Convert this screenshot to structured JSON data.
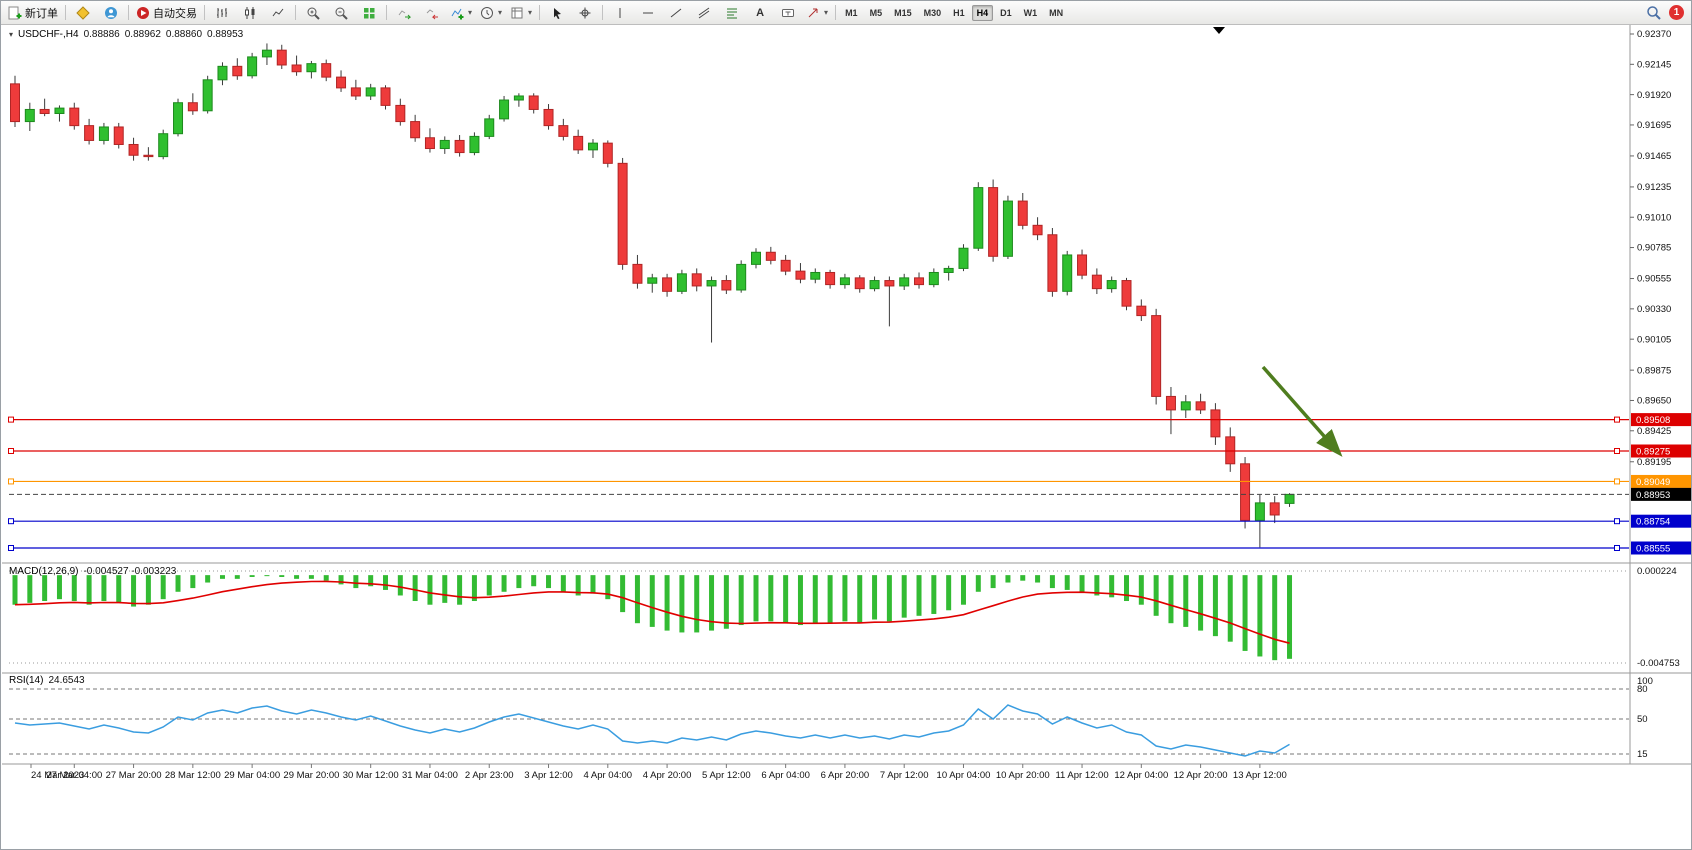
{
  "toolbar": {
    "new_order": "新订单",
    "auto_trading": "自动交易",
    "timeframe_labels": [
      "M1",
      "M5",
      "M15",
      "M30",
      "H1",
      "H4",
      "D1",
      "W1",
      "MN"
    ],
    "active_timeframe": "H4",
    "notification_badge": "1"
  },
  "chart": {
    "header": {
      "symbol": "USDCHF-,H4",
      "open": "0.88886",
      "high": "0.88962",
      "low": "0.88860",
      "close": "0.88953"
    },
    "price_ticks": [
      "0.92370",
      "0.92145",
      "0.91920",
      "0.91695",
      "0.91465",
      "0.91235",
      "0.91010",
      "0.90785",
      "0.90555",
      "0.90330",
      "0.90105",
      "0.89875",
      "0.89650",
      "0.89425",
      "0.89195"
    ],
    "levels": [
      {
        "value": 0.89508,
        "label": "0.89508",
        "color": "#dd0000"
      },
      {
        "value": 0.89275,
        "label": "0.89275",
        "color": "#dd0000"
      },
      {
        "value": 0.89049,
        "label": "0.89049",
        "color": "#ff9500"
      },
      {
        "value": 0.88754,
        "label": "0.88754",
        "color": "#0000cc"
      },
      {
        "value": 0.88555,
        "label": "0.88555",
        "color": "#0000cc"
      }
    ],
    "current_price": {
      "value": 0.88953,
      "label": "0.88953",
      "badge_color": "#000000"
    },
    "arrow_color": "#4f7d1f",
    "style": {
      "bull_color": "#2fbf2f",
      "bull_edge": "#1d8a1d",
      "bear_color": "#ee3b3b",
      "bear_edge": "#b02525",
      "wick_color": "#3a3a3a",
      "macd_hist_color": "#33bb33",
      "macd_signal_color": "#e00000",
      "rsi_line_color": "#3a9de0"
    }
  },
  "macd": {
    "label": "MACD(12,26,9)",
    "values_text": "-0.004527 -0.003223",
    "axis_max": "0.000224",
    "axis_min": "-0.004753"
  },
  "rsi": {
    "label": "RSI(14)",
    "value_text": "24.6543",
    "axis_levels": [
      "100",
      "80",
      "50",
      "15"
    ]
  },
  "chart_data": {
    "type": "candlestick",
    "title": "USDCHF-,H4",
    "symbol": "USDCHF",
    "timeframe": "H4",
    "x_axis_labels": [
      "24 Mar 2023",
      "27 Mar 04:00",
      "27 Mar 20:00",
      "28 Mar 12:00",
      "29 Mar 04:00",
      "29 Mar 20:00",
      "30 Mar 12:00",
      "31 Mar 04:00",
      "2 Apr 23:00",
      "3 Apr 12:00",
      "4 Apr 04:00",
      "4 Apr 20:00",
      "5 Apr 12:00",
      "6 Apr 04:00",
      "6 Apr 20:00",
      "7 Apr 12:00",
      "10 Apr 04:00",
      "10 Apr 20:00",
      "11 Apr 12:00",
      "12 Apr 04:00",
      "12 Apr 20:00",
      "13 Apr 12:00"
    ],
    "price_axis_range": [
      0.88555,
      0.9237
    ],
    "current_price": 0.88953,
    "horizontal_levels": [
      {
        "price": 0.89508,
        "color": "red"
      },
      {
        "price": 0.89275,
        "color": "red"
      },
      {
        "price": 0.89049,
        "color": "orange"
      },
      {
        "price": 0.88754,
        "color": "blue"
      },
      {
        "price": 0.88555,
        "color": "blue"
      }
    ],
    "candles_ohlc": [
      [
        0.92,
        0.9206,
        0.9168,
        0.9172
      ],
      [
        0.9172,
        0.9186,
        0.9165,
        0.9181
      ],
      [
        0.9181,
        0.9189,
        0.9176,
        0.9178
      ],
      [
        0.9178,
        0.9184,
        0.9172,
        0.9182
      ],
      [
        0.9182,
        0.9186,
        0.9166,
        0.9169
      ],
      [
        0.9169,
        0.9174,
        0.9155,
        0.9158
      ],
      [
        0.9158,
        0.9171,
        0.9155,
        0.9168
      ],
      [
        0.9168,
        0.9171,
        0.9152,
        0.9155
      ],
      [
        0.9155,
        0.916,
        0.9143,
        0.9147
      ],
      [
        0.9147,
        0.9153,
        0.9143,
        0.9146
      ],
      [
        0.9146,
        0.9166,
        0.9144,
        0.9163
      ],
      [
        0.9163,
        0.9189,
        0.9161,
        0.9186
      ],
      [
        0.9186,
        0.9193,
        0.9177,
        0.918
      ],
      [
        0.918,
        0.9206,
        0.9178,
        0.9203
      ],
      [
        0.9203,
        0.9216,
        0.9199,
        0.9213
      ],
      [
        0.9213,
        0.9219,
        0.9203,
        0.9206
      ],
      [
        0.9206,
        0.9223,
        0.9204,
        0.922
      ],
      [
        0.922,
        0.923,
        0.9214,
        0.9225
      ],
      [
        0.9225,
        0.9229,
        0.9211,
        0.9214
      ],
      [
        0.9214,
        0.9221,
        0.9206,
        0.9209
      ],
      [
        0.9209,
        0.9217,
        0.9204,
        0.9215
      ],
      [
        0.9215,
        0.9218,
        0.9202,
        0.9205
      ],
      [
        0.9205,
        0.921,
        0.9194,
        0.9197
      ],
      [
        0.9197,
        0.9203,
        0.9188,
        0.9191
      ],
      [
        0.9191,
        0.92,
        0.9188,
        0.9197
      ],
      [
        0.9197,
        0.9199,
        0.9181,
        0.9184
      ],
      [
        0.9184,
        0.9189,
        0.9169,
        0.9172
      ],
      [
        0.9172,
        0.9177,
        0.9157,
        0.916
      ],
      [
        0.916,
        0.9167,
        0.9149,
        0.9152
      ],
      [
        0.9152,
        0.9161,
        0.9148,
        0.9158
      ],
      [
        0.9158,
        0.9162,
        0.9146,
        0.9149
      ],
      [
        0.9149,
        0.9164,
        0.9147,
        0.9161
      ],
      [
        0.9161,
        0.9177,
        0.9159,
        0.9174
      ],
      [
        0.9174,
        0.9191,
        0.9172,
        0.9188
      ],
      [
        0.9188,
        0.9193,
        0.9183,
        0.9191
      ],
      [
        0.9191,
        0.9193,
        0.9178,
        0.9181
      ],
      [
        0.9181,
        0.9185,
        0.9166,
        0.9169
      ],
      [
        0.9169,
        0.9174,
        0.9158,
        0.9161
      ],
      [
        0.9161,
        0.9166,
        0.9148,
        0.9151
      ],
      [
        0.9151,
        0.9159,
        0.9145,
        0.9156
      ],
      [
        0.9156,
        0.9158,
        0.9138,
        0.9141
      ],
      [
        0.9141,
        0.9145,
        0.9062,
        0.9066
      ],
      [
        0.9066,
        0.9073,
        0.9048,
        0.9052
      ],
      [
        0.9052,
        0.9059,
        0.9045,
        0.9056
      ],
      [
        0.9056,
        0.9059,
        0.9042,
        0.9046
      ],
      [
        0.9046,
        0.9062,
        0.9044,
        0.9059
      ],
      [
        0.9059,
        0.9063,
        0.9046,
        0.905
      ],
      [
        0.905,
        0.9057,
        0.9008,
        0.9054
      ],
      [
        0.9054,
        0.9058,
        0.9044,
        0.9047
      ],
      [
        0.9047,
        0.9069,
        0.9045,
        0.9066
      ],
      [
        0.9066,
        0.9078,
        0.9063,
        0.9075
      ],
      [
        0.9075,
        0.9079,
        0.9066,
        0.9069
      ],
      [
        0.9069,
        0.9073,
        0.9058,
        0.9061
      ],
      [
        0.9061,
        0.9067,
        0.9052,
        0.9055
      ],
      [
        0.9055,
        0.9063,
        0.9052,
        0.906
      ],
      [
        0.906,
        0.9062,
        0.9048,
        0.9051
      ],
      [
        0.9051,
        0.9059,
        0.9048,
        0.9056
      ],
      [
        0.9056,
        0.9058,
        0.9045,
        0.9048
      ],
      [
        0.9048,
        0.9057,
        0.9046,
        0.9054
      ],
      [
        0.9054,
        0.9057,
        0.902,
        0.905
      ],
      [
        0.905,
        0.9059,
        0.9047,
        0.9056
      ],
      [
        0.9056,
        0.906,
        0.9048,
        0.9051
      ],
      [
        0.9051,
        0.9063,
        0.9049,
        0.906
      ],
      [
        0.906,
        0.9065,
        0.9054,
        0.9063
      ],
      [
        0.9063,
        0.9081,
        0.9061,
        0.9078
      ],
      [
        0.9078,
        0.9127,
        0.9076,
        0.9123
      ],
      [
        0.9123,
        0.9129,
        0.9068,
        0.9072
      ],
      [
        0.9072,
        0.9117,
        0.907,
        0.9113
      ],
      [
        0.9113,
        0.9119,
        0.9092,
        0.9095
      ],
      [
        0.9095,
        0.9101,
        0.9084,
        0.9088
      ],
      [
        0.9088,
        0.9093,
        0.9042,
        0.9046
      ],
      [
        0.9046,
        0.9076,
        0.9043,
        0.9073
      ],
      [
        0.9073,
        0.9077,
        0.9055,
        0.9058
      ],
      [
        0.9058,
        0.9063,
        0.9044,
        0.9048
      ],
      [
        0.9048,
        0.9057,
        0.9045,
        0.9054
      ],
      [
        0.9054,
        0.9056,
        0.9032,
        0.9035
      ],
      [
        0.9035,
        0.904,
        0.9024,
        0.9028
      ],
      [
        0.9028,
        0.9033,
        0.8962,
        0.8968
      ],
      [
        0.8968,
        0.8975,
        0.894,
        0.8958
      ],
      [
        0.8958,
        0.8969,
        0.8952,
        0.8964
      ],
      [
        0.8964,
        0.897,
        0.8955,
        0.8958
      ],
      [
        0.8958,
        0.8963,
        0.8932,
        0.8938
      ],
      [
        0.8938,
        0.8945,
        0.8912,
        0.8918
      ],
      [
        0.8918,
        0.8923,
        0.887,
        0.8876
      ],
      [
        0.8876,
        0.8895,
        0.8856,
        0.8889
      ],
      [
        0.8889,
        0.8894,
        0.8874,
        0.888
      ],
      [
        0.88886,
        0.88962,
        0.8886,
        0.88953
      ]
    ],
    "indicators": [
      {
        "name": "MACD",
        "params": "12,26,9",
        "current_values": [
          -0.004527,
          -0.003223
        ],
        "axis_range": [
          -0.004753,
          0.000224
        ],
        "histogram": [
          -0.0016,
          -0.0015,
          -0.0014,
          -0.0013,
          -0.0014,
          -0.0016,
          -0.0014,
          -0.0015,
          -0.0017,
          -0.0016,
          -0.0013,
          -0.0009,
          -0.0007,
          -0.0004,
          -0.0002,
          -0.0002,
          -0.0001,
          -5e-05,
          -0.0001,
          -0.0002,
          -0.0002,
          -0.0003,
          -0.0005,
          -0.0007,
          -0.0006,
          -0.0008,
          -0.0011,
          -0.0014,
          -0.0016,
          -0.0015,
          -0.0016,
          -0.0014,
          -0.0011,
          -0.0009,
          -0.0007,
          -0.0006,
          -0.0007,
          -0.0009,
          -0.0011,
          -0.001,
          -0.0013,
          -0.002,
          -0.0026,
          -0.0028,
          -0.003,
          -0.0031,
          -0.0031,
          -0.003,
          -0.0029,
          -0.0027,
          -0.0025,
          -0.0025,
          -0.0026,
          -0.0027,
          -0.0026,
          -0.0026,
          -0.0025,
          -0.0026,
          -0.0024,
          -0.0025,
          -0.0023,
          -0.0022,
          -0.0021,
          -0.0019,
          -0.0016,
          -0.0009,
          -0.0007,
          -0.0004,
          -0.0003,
          -0.0004,
          -0.0007,
          -0.0008,
          -0.0009,
          -0.0011,
          -0.0012,
          -0.0014,
          -0.0016,
          -0.0022,
          -0.0026,
          -0.0028,
          -0.003,
          -0.0033,
          -0.0036,
          -0.0041,
          -0.0044,
          -0.0046,
          -0.004527
        ]
      },
      {
        "name": "RSI",
        "params": "14",
        "current_value": 24.6543,
        "axis_levels": [
          100,
          80,
          50,
          15
        ],
        "values": [
          46,
          44,
          45,
          46,
          43,
          40,
          44,
          41,
          37,
          36,
          42,
          52,
          49,
          56,
          59,
          56,
          61,
          63,
          58,
          55,
          59,
          56,
          52,
          49,
          53,
          48,
          43,
          39,
          36,
          40,
          37,
          41,
          47,
          52,
          55,
          51,
          47,
          43,
          40,
          44,
          40,
          28,
          26,
          28,
          26,
          31,
          29,
          32,
          29,
          35,
          38,
          36,
          33,
          31,
          34,
          31,
          34,
          31,
          33,
          30,
          34,
          32,
          36,
          38,
          44,
          60,
          50,
          64,
          58,
          55,
          45,
          52,
          46,
          41,
          44,
          37,
          34,
          23,
          20,
          24,
          22,
          19,
          16,
          13,
          18,
          16,
          24.65
        ]
      }
    ]
  }
}
